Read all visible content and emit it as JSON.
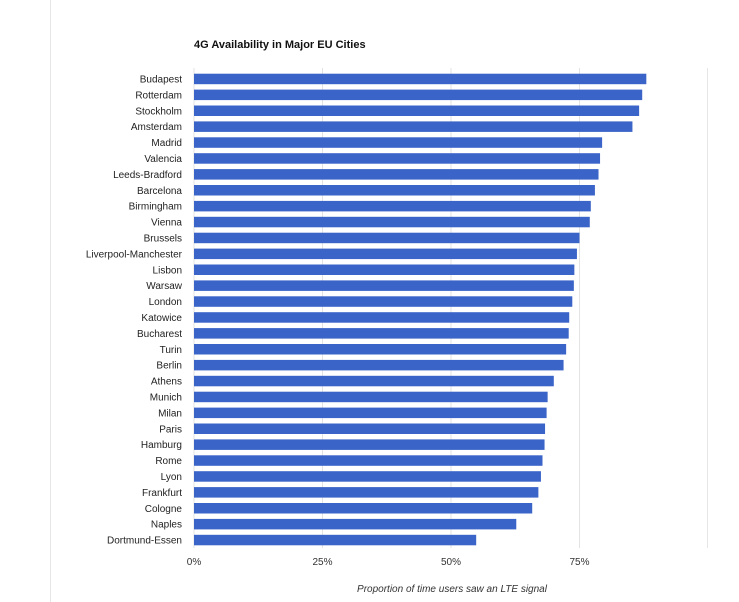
{
  "chart_data": {
    "type": "bar",
    "orientation": "horizontal",
    "title": "4G Availability in Major EU Cities",
    "xlabel": "Proportion of time users saw an LTE signal",
    "ylabel": "",
    "xlim": [
      0,
      100
    ],
    "xticks": [
      0,
      25,
      50,
      75
    ],
    "xtick_labels": [
      "0%",
      "25%",
      "50%",
      "75%"
    ],
    "grid": true,
    "bar_color": "#3b64c8",
    "categories": [
      "Budapest",
      "Rotterdam",
      "Stockholm",
      "Amsterdam",
      "Madrid",
      "Valencia",
      "Leeds-Bradford",
      "Barcelona",
      "Birmingham",
      "Vienna",
      "Brussels",
      "Liverpool-Manchester",
      "Lisbon",
      "Warsaw",
      "London",
      "Katowice",
      "Bucharest",
      "Turin",
      "Berlin",
      "Athens",
      "Munich",
      "Milan",
      "Paris",
      "Hamburg",
      "Rome",
      "Lyon",
      "Frankfurt",
      "Cologne",
      "Naples",
      "Dortmund-Essen"
    ],
    "values": [
      88.0,
      87.2,
      86.6,
      85.3,
      79.4,
      79.0,
      78.7,
      78.0,
      77.2,
      77.0,
      75.0,
      74.5,
      74.0,
      73.9,
      73.6,
      73.0,
      72.9,
      72.4,
      71.9,
      70.0,
      68.8,
      68.6,
      68.3,
      68.2,
      67.8,
      67.5,
      67.0,
      65.8,
      62.7,
      54.9
    ]
  }
}
